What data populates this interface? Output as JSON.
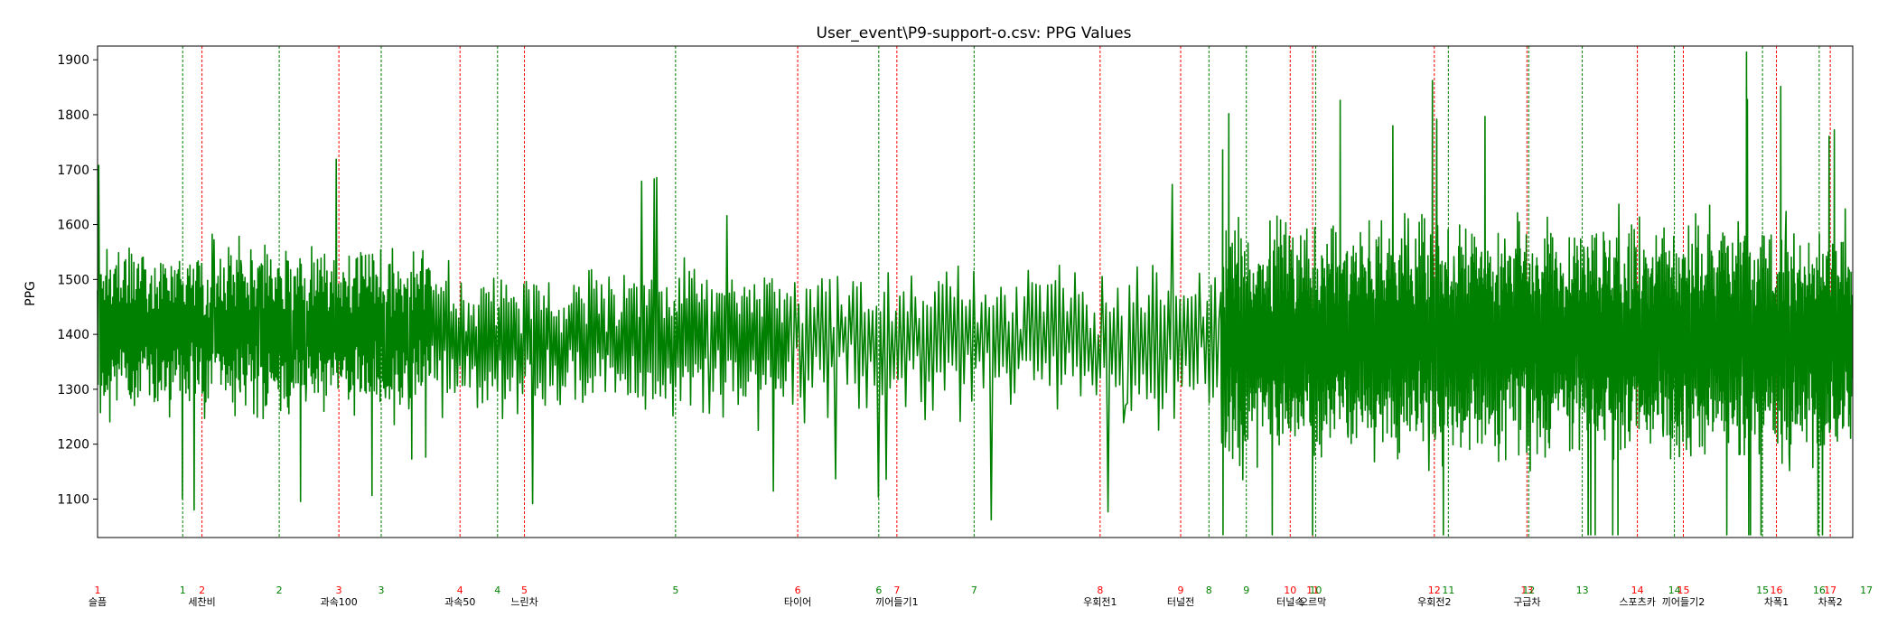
{
  "chart_data": {
    "type": "line",
    "title": "User_event\\P9-support-o.csv: PPG Values",
    "ylabel": "PPG",
    "xlabel": "",
    "ylim": [
      1030,
      1925
    ],
    "xlim": [
      0,
      1000
    ],
    "yticks": [
      1100,
      1200,
      1300,
      1400,
      1500,
      1600,
      1700,
      1800,
      1900
    ],
    "grid": false,
    "colors": {
      "series": "#008000",
      "start_marker": "#ff0000",
      "end_marker": "#008000",
      "axis": "#000000"
    },
    "series": [
      {
        "values_description_free": true,
        "baseline": 1400,
        "segments": [
          {
            "x": [
              0,
              190
            ],
            "center": 1410,
            "amplitude": 160,
            "density": 3.0
          },
          {
            "x": [
              190,
              395
            ],
            "center": 1390,
            "amplitude": 150,
            "density": 1.4
          },
          {
            "x": [
              395,
              640
            ],
            "center": 1390,
            "amplitude": 150,
            "density": 0.9
          },
          {
            "x": [
              640,
              1000
            ],
            "center": 1390,
            "amplitude": 230,
            "density": 4.0
          }
        ]
      }
    ],
    "events": [
      {
        "x": 0,
        "num": "1",
        "kind": "start",
        "label": "슬픔"
      },
      {
        "x": 48.5,
        "num": "1",
        "kind": "end",
        "label": ""
      },
      {
        "x": 59.5,
        "num": "2",
        "kind": "start",
        "label": "세찬비"
      },
      {
        "x": 103.5,
        "num": "2",
        "kind": "end",
        "label": ""
      },
      {
        "x": 137.5,
        "num": "3",
        "kind": "start",
        "label": "과속100"
      },
      {
        "x": 161.6,
        "num": "3",
        "kind": "end",
        "label": ""
      },
      {
        "x": 206.5,
        "num": "4",
        "kind": "start",
        "label": "과속50"
      },
      {
        "x": 227.9,
        "num": "4",
        "kind": "end",
        "label": ""
      },
      {
        "x": 243.2,
        "num": "5",
        "kind": "start",
        "label": "느린차"
      },
      {
        "x": 329.3,
        "num": "5",
        "kind": "end",
        "label": ""
      },
      {
        "x": 398.9,
        "num": "6",
        "kind": "start",
        "label": "타이어"
      },
      {
        "x": 445.1,
        "num": "6",
        "kind": "end",
        "label": ""
      },
      {
        "x": 455.4,
        "num": "7",
        "kind": "start",
        "label": "끼어들기1"
      },
      {
        "x": 499.4,
        "num": "7",
        "kind": "end",
        "label": ""
      },
      {
        "x": 571.2,
        "num": "8",
        "kind": "start",
        "label": "우회전1"
      },
      {
        "x": 617.1,
        "num": "9",
        "kind": "start",
        "label": "터널전"
      },
      {
        "x": 633.2,
        "num": "8",
        "kind": "end",
        "label": ""
      },
      {
        "x": 654.5,
        "num": "9",
        "kind": "end",
        "label": ""
      },
      {
        "x": 679.5,
        "num": "10",
        "kind": "start",
        "label": "터널속"
      },
      {
        "x": 692.3,
        "num": "11",
        "kind": "start",
        "label": "오르막"
      },
      {
        "x": 694.0,
        "num": "10",
        "kind": "end",
        "label": ""
      },
      {
        "x": 761.6,
        "num": "12",
        "kind": "start",
        "label": "우회전2"
      },
      {
        "x": 769.6,
        "num": "11",
        "kind": "end",
        "label": ""
      },
      {
        "x": 814.4,
        "num": "13",
        "kind": "start",
        "label": "구급차"
      },
      {
        "x": 815.4,
        "num": "12",
        "kind": "end",
        "label": ""
      },
      {
        "x": 845.9,
        "num": "13",
        "kind": "end",
        "label": ""
      },
      {
        "x": 877.3,
        "num": "14",
        "kind": "start",
        "label": "스포츠카"
      },
      {
        "x": 898.4,
        "num": "14",
        "kind": "end",
        "label": ""
      },
      {
        "x": 903.5,
        "num": "15",
        "kind": "start",
        "label": "끼어들기2"
      },
      {
        "x": 948.6,
        "num": "15",
        "kind": "end",
        "label": ""
      },
      {
        "x": 956.5,
        "num": "16",
        "kind": "start",
        "label": "차폭1"
      },
      {
        "x": 980.9,
        "num": "16",
        "kind": "end",
        "label": ""
      },
      {
        "x": 987.2,
        "num": "17",
        "kind": "start",
        "label": "차폭2"
      },
      {
        "x": 1007.8,
        "num": "17",
        "kind": "end",
        "label": ""
      }
    ]
  }
}
